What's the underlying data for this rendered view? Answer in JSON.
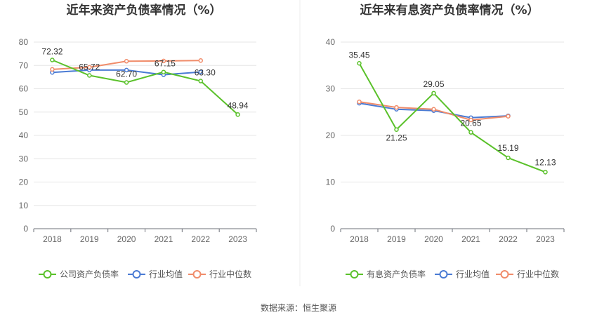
{
  "source_label": "数据来源：恒生聚源",
  "chart_data": [
    {
      "type": "line",
      "title": "近年来资产负债率情况（%）",
      "xlabel": "",
      "ylabel": "",
      "categories": [
        "2018",
        "2019",
        "2020",
        "2021",
        "2022",
        "2023"
      ],
      "ylim": [
        0,
        80
      ],
      "yticks": [
        0,
        10,
        20,
        30,
        40,
        50,
        60,
        70,
        80
      ],
      "grid": true,
      "legend_position": "bottom",
      "series": [
        {
          "name": "公司资产负债率",
          "color": "#5ac12a",
          "values": [
            72.32,
            65.72,
            62.7,
            67.15,
            63.3,
            48.94
          ],
          "labels": [
            "72.32",
            "65.72",
            "62.70",
            "67.15",
            "63.30",
            "48.94"
          ]
        },
        {
          "name": "行业均值",
          "color": "#4a7bd4",
          "values": [
            67.0,
            68.0,
            68.0,
            66.0,
            67.2,
            null
          ],
          "labels": []
        },
        {
          "name": "行业中位数",
          "color": "#f08c6a",
          "values": [
            68.3,
            69.2,
            71.8,
            71.9,
            72.1,
            null
          ],
          "labels": []
        }
      ]
    },
    {
      "type": "line",
      "title": "近年来有息资产负债率情况（%）",
      "xlabel": "",
      "ylabel": "",
      "categories": [
        "2018",
        "2019",
        "2020",
        "2021",
        "2022",
        "2023"
      ],
      "ylim": [
        0,
        40
      ],
      "yticks": [
        0,
        10,
        20,
        30,
        40
      ],
      "grid": true,
      "legend_position": "bottom",
      "series": [
        {
          "name": "有息资产负债率",
          "color": "#5ac12a",
          "values": [
            35.45,
            21.25,
            29.05,
            20.65,
            15.19,
            12.13
          ],
          "labels": [
            "35.45",
            "21.25",
            "29.05",
            "20.65",
            "15.19",
            "12.13"
          ]
        },
        {
          "name": "行业均值",
          "color": "#4a7bd4",
          "values": [
            26.9,
            25.6,
            25.3,
            23.8,
            24.2,
            null
          ],
          "labels": []
        },
        {
          "name": "行业中位数",
          "color": "#f08c6a",
          "values": [
            27.2,
            26.0,
            25.6,
            23.3,
            24.1,
            null
          ],
          "labels": []
        }
      ]
    }
  ]
}
